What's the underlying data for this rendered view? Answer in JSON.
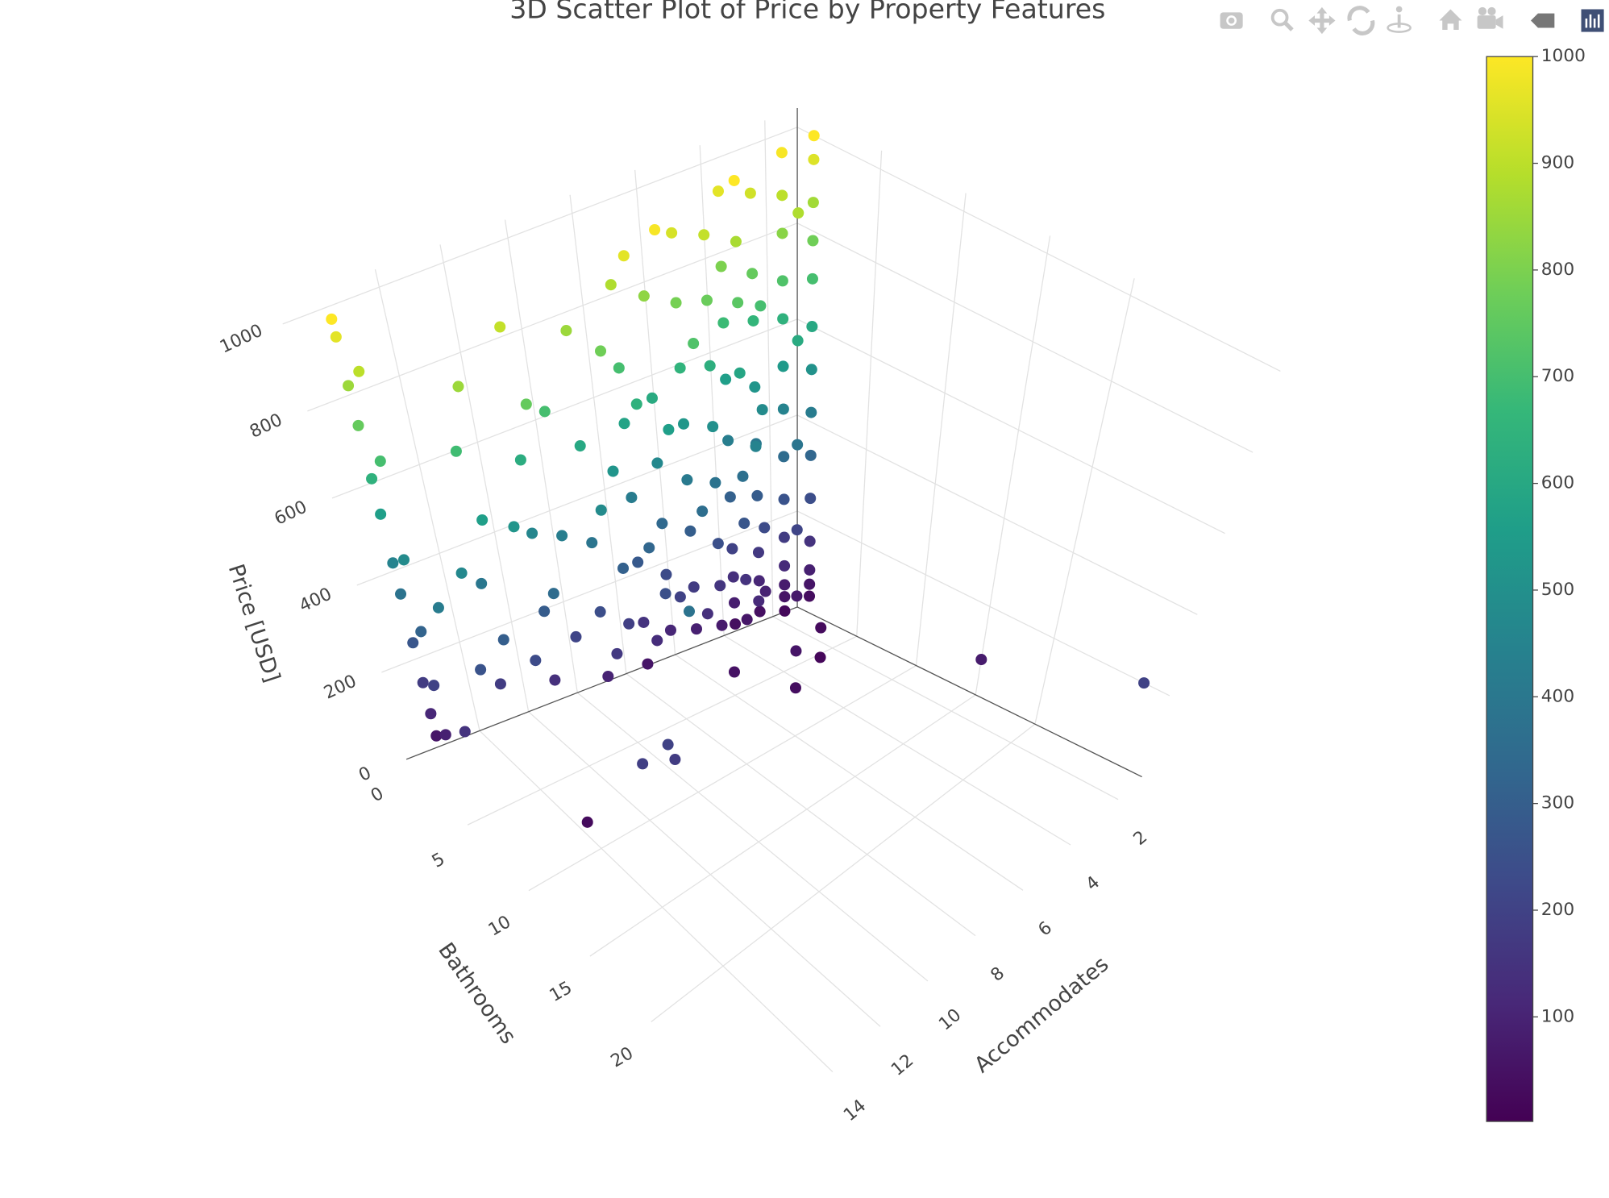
{
  "chart_data": {
    "type": "scatter3d",
    "title": "3D Scatter Plot of Price by Property Features",
    "xlabel": "Accommodates",
    "ylabel": "Bathrooms",
    "zlabel": "Price [USD]",
    "xlim": [
      1,
      17
    ],
    "ylim": [
      0,
      29
    ],
    "zlim": [
      0,
      1040
    ],
    "xticks": [
      2,
      4,
      6,
      8,
      10,
      12,
      14
    ],
    "yticks": [
      0,
      5,
      10,
      15,
      20
    ],
    "zticks": [
      0,
      200,
      400,
      600,
      800,
      1000
    ],
    "grid": true,
    "colorscale": [
      [
        0,
        "#440154"
      ],
      [
        0.111,
        "#482878"
      ],
      [
        0.222,
        "#3e4989"
      ],
      [
        0.333,
        "#31688e"
      ],
      [
        0.444,
        "#26828e"
      ],
      [
        0.556,
        "#1f9e89"
      ],
      [
        0.667,
        "#35b779"
      ],
      [
        0.778,
        "#6ece58"
      ],
      [
        0.889,
        "#b5de2b"
      ],
      [
        1,
        "#fde725"
      ]
    ],
    "clim": [
      2,
      1000
    ],
    "colorbar_ticks": [
      100,
      200,
      300,
      400,
      500,
      600,
      700,
      800,
      900,
      1000
    ],
    "x": [
      1,
      1,
      1,
      1,
      1,
      1,
      1,
      1,
      1,
      1,
      1,
      1,
      1,
      1,
      2,
      2,
      2,
      2,
      2,
      2,
      2,
      2,
      2,
      2,
      2,
      2,
      2,
      2,
      2,
      2,
      2,
      2,
      2,
      3,
      3,
      3,
      3,
      3,
      3,
      3,
      3,
      3,
      3,
      3,
      3,
      3,
      4,
      4,
      4,
      4,
      4,
      4,
      4,
      4,
      4,
      4,
      4,
      4,
      4,
      4,
      4,
      4,
      4,
      4,
      4,
      4,
      5,
      5,
      5,
      5,
      5,
      5,
      5,
      5,
      6,
      6,
      6,
      6,
      6,
      6,
      6,
      6,
      6,
      6,
      6,
      7,
      7,
      7,
      7,
      7,
      7,
      7,
      7,
      7,
      8,
      8,
      8,
      8,
      8,
      8,
      8,
      8,
      8,
      8,
      8,
      8,
      9,
      9,
      9,
      9,
      10,
      10,
      10,
      10,
      10,
      10,
      10,
      11,
      11,
      11,
      12,
      12,
      12,
      12,
      12,
      12,
      12,
      13,
      13,
      14,
      14,
      14,
      14,
      14,
      14,
      15,
      15,
      16,
      16,
      16,
      16,
      16,
      16,
      16,
      16,
      16,
      16,
      16,
      16,
      16,
      16,
      16,
      16,
      16,
      16,
      16,
      16,
      1,
      1,
      3,
      5,
      10,
      12,
      12,
      13,
      14,
      6,
      2,
      4
    ],
    "y": [
      1,
      1,
      1,
      1,
      1,
      1,
      1,
      1,
      1,
      1,
      1,
      1,
      1,
      1,
      1,
      1,
      1,
      1,
      1,
      1,
      1,
      1,
      1,
      1,
      1,
      1,
      1,
      1,
      2,
      2,
      2,
      2,
      2,
      1,
      1,
      1,
      1,
      1,
      1,
      1,
      1,
      1,
      1.5,
      1.5,
      1.5,
      1.5,
      1,
      1,
      1,
      1,
      1,
      1,
      1,
      1,
      1,
      1,
      2,
      2,
      2,
      2,
      2,
      2,
      2,
      2,
      3,
      3,
      2,
      2,
      2,
      2,
      2,
      2,
      2,
      2,
      2,
      2,
      2,
      2,
      2,
      2,
      2,
      2,
      3,
      3,
      3,
      2,
      2,
      2,
      2,
      2,
      2,
      3,
      3,
      3,
      2,
      2,
      2,
      2,
      2,
      2,
      2,
      3,
      3,
      3,
      3,
      4,
      3,
      3,
      3,
      3,
      3,
      3,
      3,
      3,
      3,
      4,
      4,
      3,
      3,
      3,
      3,
      3,
      3,
      3,
      3,
      4,
      4,
      4,
      4,
      3,
      3,
      3,
      4,
      4,
      4,
      4,
      4,
      1,
      1,
      1,
      1,
      1,
      1,
      1,
      1,
      1,
      1,
      1,
      1,
      2,
      2,
      2,
      2,
      2,
      2,
      4,
      4,
      27,
      15,
      6,
      8,
      10,
      12,
      12.5,
      12,
      9,
      5,
      4,
      6
    ],
    "z": [
      35,
      60,
      90,
      150,
      240,
      330,
      420,
      510,
      600,
      700,
      780,
      860,
      950,
      1000,
      25,
      55,
      80,
      120,
      180,
      260,
      350,
      450,
      540,
      640,
      720,
      820,
      900,
      990,
      70,
      210,
      390,
      610,
      880,
      45,
      110,
      170,
      290,
      400,
      520,
      660,
      760,
      930,
      95,
      230,
      480,
      700,
      40,
      85,
      140,
      200,
      310,
      430,
      560,
      680,
      800,
      960,
      65,
      150,
      270,
      370,
      590,
      740,
      870,
      1000,
      120,
      450,
      75,
      160,
      250,
      380,
      500,
      630,
      770,
      910,
      90,
      180,
      300,
      410,
      530,
      650,
      790,
      940,
      140,
      360,
      720,
      110,
      230,
      340,
      470,
      610,
      830,
      200,
      560,
      990,
      60,
      150,
      280,
      420,
      580,
      700,
      880,
      130,
      330,
      640,
      960,
      250,
      190,
      310,
      520,
      780,
      100,
      240,
      390,
      600,
      850,
      170,
      480,
      210,
      430,
      700,
      140,
      290,
      460,
      620,
      910,
      350,
      760,
      230,
      520,
      180,
      400,
      690,
      300,
      560,
      850,
      260,
      470,
      60,
      110,
      180,
      270,
      380,
      450,
      560,
      640,
      760,
      850,
      960,
      1000,
      90,
      200,
      320,
      480,
      700,
      900,
      150,
      420,
      200,
      80,
      20,
      40,
      380,
      200,
      180,
      190,
      30,
      50,
      30,
      60
    ]
  }
}
